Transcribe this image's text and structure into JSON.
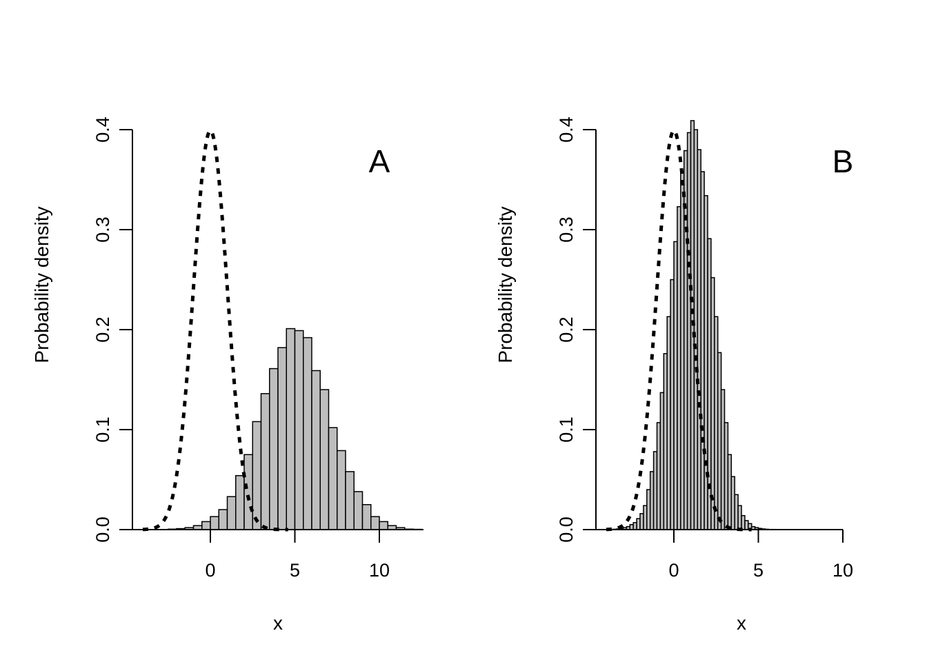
{
  "colors": {
    "bar_fill": "#bebebe",
    "line": "#000000",
    "background": "#ffffff"
  },
  "chart_data": [
    {
      "type": "bar",
      "panel_label": "A",
      "xlabel": "x",
      "ylabel": "Probability density",
      "xlim": [
        -4.6,
        12.6
      ],
      "ylim": [
        0,
        0.4
      ],
      "xticks": [
        "0",
        "5",
        "10"
      ],
      "yticks": [
        "0.0",
        "0.1",
        "0.2",
        "0.3",
        "0.4"
      ],
      "histogram": {
        "bin_width": 0.5,
        "bin_start": -2.5,
        "densities": [
          0.0005,
          0.001,
          0.002,
          0.004,
          0.008,
          0.013,
          0.02,
          0.033,
          0.054,
          0.075,
          0.108,
          0.136,
          0.161,
          0.182,
          0.201,
          0.199,
          0.192,
          0.159,
          0.14,
          0.102,
          0.079,
          0.058,
          0.038,
          0.025,
          0.013,
          0.008,
          0.004,
          0.002,
          0.0005,
          0.0003
        ]
      },
      "density_curve": {
        "distribution": "normal",
        "mean": 0,
        "sd": 1,
        "x_range": [
          -4.0,
          4.6
        ],
        "style": "dashed"
      }
    },
    {
      "type": "bar",
      "panel_label": "B",
      "xlabel": "x",
      "ylabel": "Probability density",
      "xlim": [
        -4.6,
        10
      ],
      "ylim": [
        0,
        0.4
      ],
      "xticks": [
        "0",
        "5",
        "10"
      ],
      "yticks": [
        "0.0",
        "0.1",
        "0.2",
        "0.3",
        "0.4"
      ],
      "histogram": {
        "bin_width": 0.2,
        "bin_start": -4.0,
        "densities": [
          0.0002,
          0.0002,
          0.0004,
          0.0007,
          0.0011,
          0.002,
          0.003,
          0.005,
          0.007,
          0.011,
          0.016,
          0.024,
          0.04,
          0.058,
          0.078,
          0.107,
          0.137,
          0.176,
          0.213,
          0.25,
          0.288,
          0.323,
          0.357,
          0.379,
          0.397,
          0.409,
          0.4,
          0.38,
          0.358,
          0.334,
          0.291,
          0.252,
          0.213,
          0.177,
          0.14,
          0.107,
          0.075,
          0.053,
          0.035,
          0.024,
          0.014,
          0.009,
          0.006,
          0.003,
          0.002,
          0.0012,
          0.0007,
          0.0004,
          0.0002,
          0.0002
        ]
      },
      "density_curve": {
        "distribution": "normal",
        "mean": 0,
        "sd": 1,
        "x_range": [
          -4.0,
          4.6
        ],
        "style": "dashed"
      }
    }
  ]
}
